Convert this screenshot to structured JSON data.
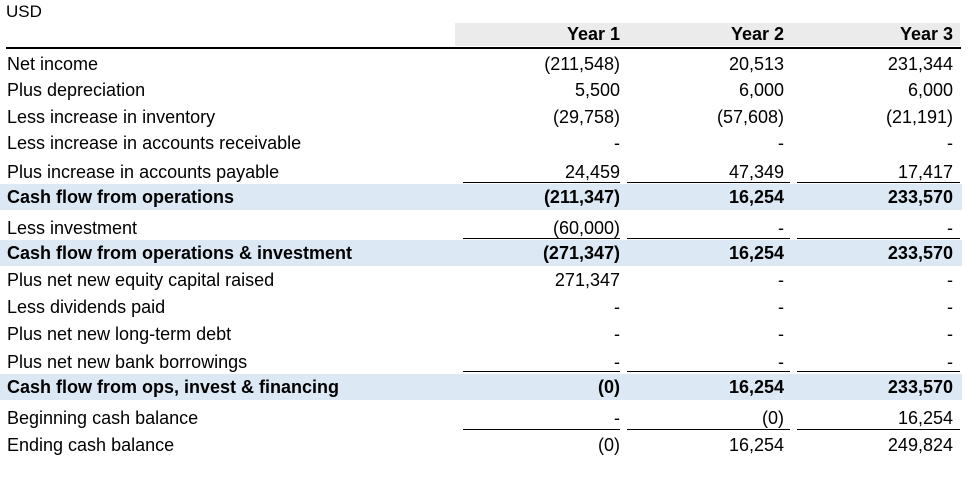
{
  "currency": "USD",
  "columns": [
    "Year 1",
    "Year 2",
    "Year 3"
  ],
  "rows": [
    {
      "label": "Net income",
      "values": [
        "(211,548)",
        "20,513",
        "231,344"
      ],
      "bold": false,
      "band": false
    },
    {
      "label": "Plus depreciation",
      "values": [
        "5,500",
        "6,000",
        "6,000"
      ],
      "bold": false,
      "band": false
    },
    {
      "label": "Less increase in inventory",
      "values": [
        "(29,758)",
        "(57,608)",
        "(21,191)"
      ],
      "bold": false,
      "band": false
    },
    {
      "label": "Less increase in accounts receivable",
      "values": [
        "-",
        "-",
        "-"
      ],
      "bold": false,
      "band": false
    },
    {
      "label": "Plus increase in accounts payable",
      "values": [
        "24,459",
        "47,349",
        "17,417"
      ],
      "bold": false,
      "band": false
    },
    {
      "label": "Cash flow from operations",
      "values": [
        "(211,347)",
        "16,254",
        "233,570"
      ],
      "bold": true,
      "band": true
    },
    {
      "label": "Less investment",
      "values": [
        "(60,000)",
        "-",
        "-"
      ],
      "bold": false,
      "band": false
    },
    {
      "label": "Cash flow from operations & investment",
      "values": [
        "(271,347)",
        "16,254",
        "233,570"
      ],
      "bold": true,
      "band": true
    },
    {
      "label": "Plus net new equity capital raised",
      "values": [
        "271,347",
        "-",
        "-"
      ],
      "bold": false,
      "band": false
    },
    {
      "label": "Less dividends paid",
      "values": [
        "-",
        "-",
        "-"
      ],
      "bold": false,
      "band": false
    },
    {
      "label": "Plus net new long-term debt",
      "values": [
        "-",
        "-",
        "-"
      ],
      "bold": false,
      "band": false
    },
    {
      "label": "Plus net new bank borrowings",
      "values": [
        "-",
        "-",
        "-"
      ],
      "bold": false,
      "band": false
    },
    {
      "label": "Cash flow from ops, invest & financing",
      "values": [
        "(0)",
        "16,254",
        "233,570"
      ],
      "bold": true,
      "band": true
    },
    {
      "label": "Beginning cash balance",
      "values": [
        "-",
        "(0)",
        "16,254"
      ],
      "bold": false,
      "band": false
    },
    {
      "label": "Ending cash balance",
      "values": [
        "(0)",
        "16,254",
        "249,824"
      ],
      "bold": false,
      "band": false
    }
  ]
}
